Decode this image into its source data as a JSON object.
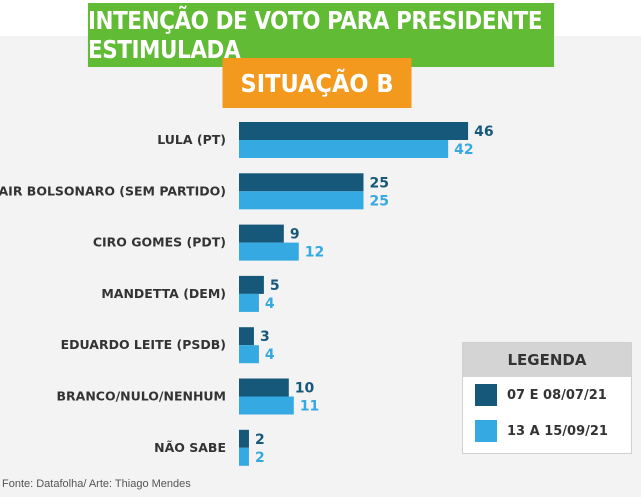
{
  "header": {
    "title": "INTENÇÃO DE VOTO PARA PRESIDENTE ESTIMULADA",
    "subtitle": "SITUAÇÃO B"
  },
  "colors": {
    "green": "#62bb34",
    "orange": "#f39a1e",
    "series_dark": "#16587a",
    "series_light": "#35a9e1"
  },
  "legend": {
    "title": "LEGENDA",
    "items": [
      "07 E 08/07/21",
      "13 A 15/09/21"
    ]
  },
  "source": "Fonte: Datafolha/ Arte: Thiago Mendes",
  "chart_data": {
    "type": "bar",
    "orientation": "horizontal",
    "title": "INTENÇÃO DE VOTO PARA PRESIDENTE ESTIMULADA",
    "subtitle": "SITUAÇÃO B",
    "categories": [
      "LULA (PT)",
      "JAIR BOLSONARO (SEM PARTIDO)",
      "CIRO GOMES (PDT)",
      "MANDETTA (DEM)",
      "EDUARDO LEITE (PSDB)",
      "BRANCO/NULO/NENHUM",
      "NÃO SABE"
    ],
    "series": [
      {
        "name": "07 E 08/07/21",
        "values": [
          46,
          25,
          9,
          5,
          3,
          10,
          2
        ]
      },
      {
        "name": "13 A 15/09/21",
        "values": [
          42,
          25,
          12,
          4,
          4,
          11,
          2
        ]
      }
    ],
    "legend_position": "bottom-right",
    "grid": false
  }
}
